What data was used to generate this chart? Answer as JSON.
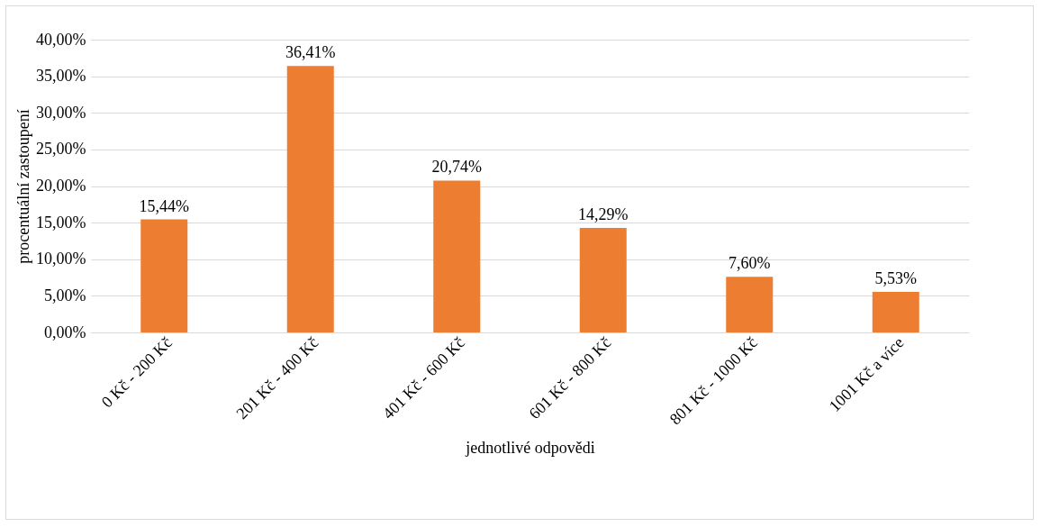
{
  "chart_data": {
    "type": "bar",
    "xlabel": "jednotlivé odpovědi",
    "ylabel": "procentuální zastoupení",
    "categories": [
      "0 Kč - 200 Kč",
      "201 Kč - 400 Kč",
      "401 Kč - 600 Kč",
      "601 Kč - 800 Kč",
      "801 Kč - 1000 Kč",
      "1001 Kč a více"
    ],
    "values": [
      15.44,
      36.41,
      20.74,
      14.29,
      7.6,
      5.53
    ],
    "value_labels": [
      "15,44%",
      "36,41%",
      "20,74%",
      "14,29%",
      "7,60%",
      "5,53%"
    ],
    "color": "#ed7d31",
    "ylim": [
      0,
      40
    ],
    "yticks": [
      {
        "value": 0,
        "label": "0,00%"
      },
      {
        "value": 5,
        "label": "5,00%"
      },
      {
        "value": 10,
        "label": "10,00%"
      },
      {
        "value": 15,
        "label": "15,00%"
      },
      {
        "value": 20,
        "label": "20,00%"
      },
      {
        "value": 25,
        "label": "25,00%"
      },
      {
        "value": 30,
        "label": "30,00%"
      },
      {
        "value": 35,
        "label": "35,00%"
      },
      {
        "value": 40,
        "label": "40,00%"
      }
    ],
    "grid": "y"
  }
}
